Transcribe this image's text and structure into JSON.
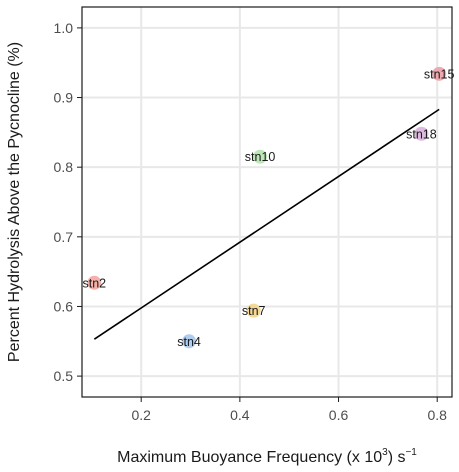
{
  "chart_data": {
    "type": "scatter",
    "title": "",
    "xlabel": {
      "prefix": "Maximum Buoyance Frequency (x 10",
      "superscript_1": "3",
      "middle": ") s",
      "superscript_2": "−1"
    },
    "ylabel": "Percent Hydrolysis Above the Pycnocline (%)",
    "xlim": [
      0.08,
      0.83
    ],
    "ylim": [
      0.47,
      1.03
    ],
    "x_ticks": [
      {
        "value": 0.2,
        "label": "0.2"
      },
      {
        "value": 0.4,
        "label": "0.4"
      },
      {
        "value": 0.6,
        "label": "0.6"
      },
      {
        "value": 0.8,
        "label": "0.8"
      }
    ],
    "y_ticks": [
      {
        "value": 0.5,
        "label": "0.5"
      },
      {
        "value": 0.6,
        "label": "0.6"
      },
      {
        "value": 0.7,
        "label": "0.7"
      },
      {
        "value": 0.8,
        "label": "0.8"
      },
      {
        "value": 0.9,
        "label": "0.9"
      },
      {
        "value": 1.0,
        "label": "1.0"
      }
    ],
    "grid": true,
    "legend": "none",
    "points": [
      {
        "label": "stn2",
        "x": 0.105,
        "y": 0.634,
        "color": "#f4a9a0"
      },
      {
        "label": "stn4",
        "x": 0.297,
        "y": 0.55,
        "color": "#a6c8ec"
      },
      {
        "label": "stn7",
        "x": 0.428,
        "y": 0.594,
        "color": "#f3d58c"
      },
      {
        "label": "stn10",
        "x": 0.441,
        "y": 0.815,
        "color": "#b7e3b0"
      },
      {
        "label": "stn15",
        "x": 0.804,
        "y": 0.934,
        "color": "#f0a0a8"
      },
      {
        "label": "stn18",
        "x": 0.768,
        "y": 0.848,
        "color": "#d9b3dc"
      }
    ],
    "fit_line": {
      "x": [
        0.105,
        0.804
      ],
      "y": [
        0.553,
        0.883
      ]
    }
  }
}
